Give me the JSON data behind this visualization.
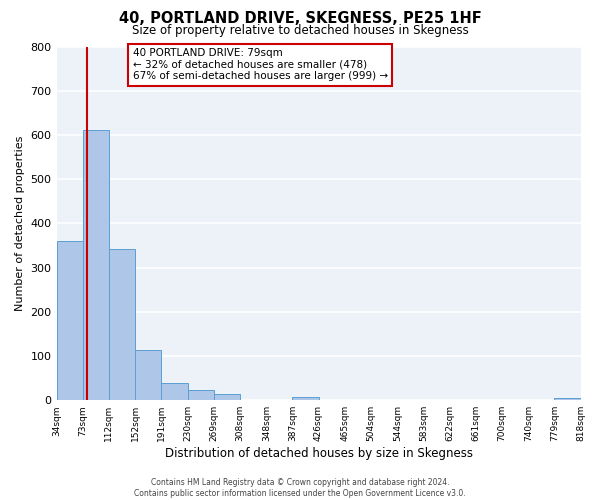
{
  "title": "40, PORTLAND DRIVE, SKEGNESS, PE25 1HF",
  "subtitle": "Size of property relative to detached houses in Skegness",
  "xlabel": "Distribution of detached houses by size in Skegness",
  "ylabel": "Number of detached properties",
  "bar_left_edges": [
    34,
    73,
    112,
    152,
    191,
    230,
    269,
    308,
    348,
    387,
    426,
    465,
    504,
    544,
    583,
    622,
    661,
    700,
    740,
    779
  ],
  "bar_heights": [
    360,
    612,
    343,
    114,
    40,
    22,
    14,
    0,
    0,
    8,
    0,
    0,
    0,
    0,
    0,
    0,
    0,
    0,
    0,
    4
  ],
  "bin_width": 39,
  "bar_color": "#aec6e8",
  "bar_edge_color": "#5a9fd4",
  "xtick_labels": [
    "34sqm",
    "73sqm",
    "112sqm",
    "152sqm",
    "191sqm",
    "230sqm",
    "269sqm",
    "308sqm",
    "348sqm",
    "387sqm",
    "426sqm",
    "465sqm",
    "504sqm",
    "544sqm",
    "583sqm",
    "622sqm",
    "661sqm",
    "700sqm",
    "740sqm",
    "779sqm",
    "818sqm"
  ],
  "xtick_positions": [
    34,
    73,
    112,
    152,
    191,
    230,
    269,
    308,
    348,
    387,
    426,
    465,
    504,
    544,
    583,
    622,
    661,
    700,
    740,
    779,
    818
  ],
  "ylim": [
    0,
    800
  ],
  "yticks": [
    0,
    100,
    200,
    300,
    400,
    500,
    600,
    700,
    800
  ],
  "property_line_x": 79,
  "property_line_color": "#cc0000",
  "annotation_title": "40 PORTLAND DRIVE: 79sqm",
  "annotation_line1": "← 32% of detached houses are smaller (478)",
  "annotation_line2": "67% of semi-detached houses are larger (999) →",
  "annotation_box_color": "#ffffff",
  "annotation_box_edge_color": "#cc0000",
  "footer_line1": "Contains HM Land Registry data © Crown copyright and database right 2024.",
  "footer_line2": "Contains public sector information licensed under the Open Government Licence v3.0.",
  "background_color": "#edf2f9",
  "grid_color": "#ffffff",
  "fig_bg_color": "#ffffff"
}
